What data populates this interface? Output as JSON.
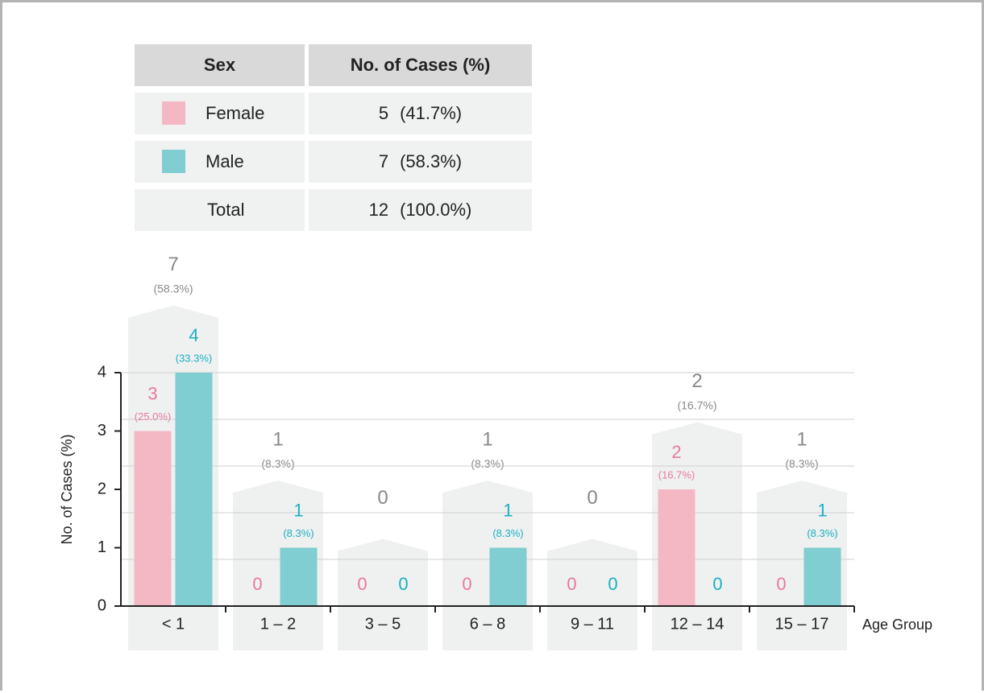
{
  "table": {
    "header": [
      "Sex",
      "No. of Cases (%)"
    ],
    "rows": [
      {
        "sex": "Female",
        "count": "5",
        "percent": "(41.7%)",
        "color": "#f4b8c4"
      },
      {
        "sex": "Male",
        "count": "7",
        "percent": "(58.3%)",
        "color": "#80cdd2"
      },
      {
        "sex": "Total",
        "count": "12",
        "percent": "(100.0%)"
      }
    ]
  },
  "chart_data": {
    "type": "bar",
    "categories": [
      "< 1",
      "1 – 2",
      "3 – 5",
      "6 – 8",
      "9 – 11",
      "12 – 14",
      "15 – 17"
    ],
    "series": [
      {
        "color": "#f4b8c4",
        "label_color": "#e8799a",
        "values": [
          3,
          0,
          0,
          0,
          0,
          2,
          0
        ],
        "percent_labels": [
          "(25.0%)",
          null,
          null,
          null,
          null,
          "(16.7%)",
          null
        ]
      },
      {
        "color": "#80cdd2",
        "label_color": "#1ab0c2",
        "values": [
          4,
          1,
          0,
          1,
          0,
          0,
          1
        ],
        "percent_labels": [
          "(33.3%)",
          "(8.3%)",
          null,
          "(8.3%)",
          null,
          null,
          "(8.3%)"
        ]
      }
    ],
    "totals": {
      "color": "#888888",
      "values": [
        7,
        1,
        0,
        1,
        0,
        2,
        1
      ],
      "percent_labels": [
        "(58.3%)",
        "(8.3%)",
        null,
        "(8.3%)",
        null,
        "(16.7%)",
        "(8.3%)"
      ]
    },
    "ylabel": "No. of Cases (%)",
    "xlabel": "Age Group",
    "ylim": [
      0,
      4
    ],
    "yticks": [
      0,
      1,
      2,
      3,
      4
    ],
    "ygrid": [
      0.8,
      1.6,
      2.4,
      3.2,
      4
    ]
  }
}
